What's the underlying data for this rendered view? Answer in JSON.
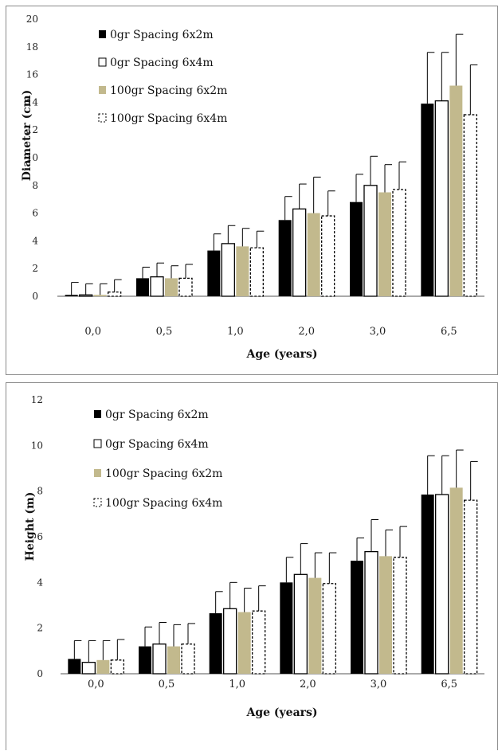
{
  "chart_data": [
    {
      "type": "bar",
      "title": "",
      "xlabel": "Age (years)",
      "ylabel": "Diameter  (cm)",
      "categories": [
        "0,0",
        "0,5",
        "1,0",
        "2,0",
        "3,0",
        "6,5"
      ],
      "ylim": [
        0,
        20
      ],
      "yticks": [
        0,
        2,
        4,
        6,
        8,
        10,
        12,
        14,
        16,
        18,
        20
      ],
      "legend_position": "top-left",
      "grid": false,
      "series": [
        {
          "name": "0gr Spacing 6x2m",
          "style": "solid",
          "color": "#000000",
          "values": [
            0.1,
            1.3,
            3.3,
            5.5,
            6.8,
            13.9
          ],
          "error": [
            0.9,
            0.8,
            1.2,
            1.7,
            2.0,
            3.7
          ]
        },
        {
          "name": "0gr Spacing 6x4m",
          "style": "outline",
          "color": "#ffffff",
          "values": [
            0.1,
            1.4,
            3.8,
            6.3,
            8.0,
            14.1
          ],
          "error": [
            0.8,
            1.0,
            1.3,
            1.8,
            2.1,
            3.5
          ]
        },
        {
          "name": "100gr Spacing 6x2m",
          "style": "solid",
          "color": "#c2b98d",
          "values": [
            0.1,
            1.3,
            3.6,
            6.0,
            7.5,
            15.2
          ],
          "error": [
            0.8,
            0.9,
            1.3,
            2.6,
            2.0,
            3.7
          ]
        },
        {
          "name": "100gr Spacing 6x4m",
          "style": "dashed",
          "color": "#ffffff",
          "values": [
            0.3,
            1.3,
            3.5,
            5.8,
            7.7,
            13.1
          ],
          "error": [
            0.9,
            1.0,
            1.2,
            1.8,
            2.0,
            3.6
          ]
        }
      ]
    },
    {
      "type": "bar",
      "title": "",
      "xlabel": "Age (years)",
      "ylabel": "Height  (m)",
      "categories": [
        "0,0",
        "0,5",
        "1,0",
        "2,0",
        "3,0",
        "6,5"
      ],
      "ylim": [
        0,
        12
      ],
      "yticks": [
        0,
        2,
        4,
        6,
        8,
        10,
        12
      ],
      "legend_position": "top-left",
      "grid": false,
      "series": [
        {
          "name": "0gr Spacing 6x2m",
          "style": "solid",
          "color": "#000000",
          "values": [
            0.65,
            1.2,
            2.65,
            4.0,
            4.95,
            7.85
          ],
          "error": [
            0.8,
            0.85,
            0.95,
            1.1,
            1.0,
            1.7
          ]
        },
        {
          "name": "0gr Spacing 6x4m",
          "style": "outline",
          "color": "#ffffff",
          "values": [
            0.5,
            1.3,
            2.85,
            4.35,
            5.35,
            7.85
          ],
          "error": [
            0.95,
            0.95,
            1.15,
            1.35,
            1.4,
            1.7
          ]
        },
        {
          "name": "100gr Spacing 6x2m",
          "style": "solid",
          "color": "#c2b98d",
          "values": [
            0.6,
            1.2,
            2.7,
            4.2,
            5.15,
            8.15
          ],
          "error": [
            0.85,
            0.95,
            1.05,
            1.1,
            1.15,
            1.65
          ]
        },
        {
          "name": "100gr Spacing 6x4m",
          "style": "dashed",
          "color": "#ffffff",
          "values": [
            0.6,
            1.3,
            2.75,
            3.95,
            5.1,
            7.6
          ],
          "error": [
            0.9,
            0.9,
            1.1,
            1.35,
            1.35,
            1.7
          ]
        }
      ]
    }
  ]
}
